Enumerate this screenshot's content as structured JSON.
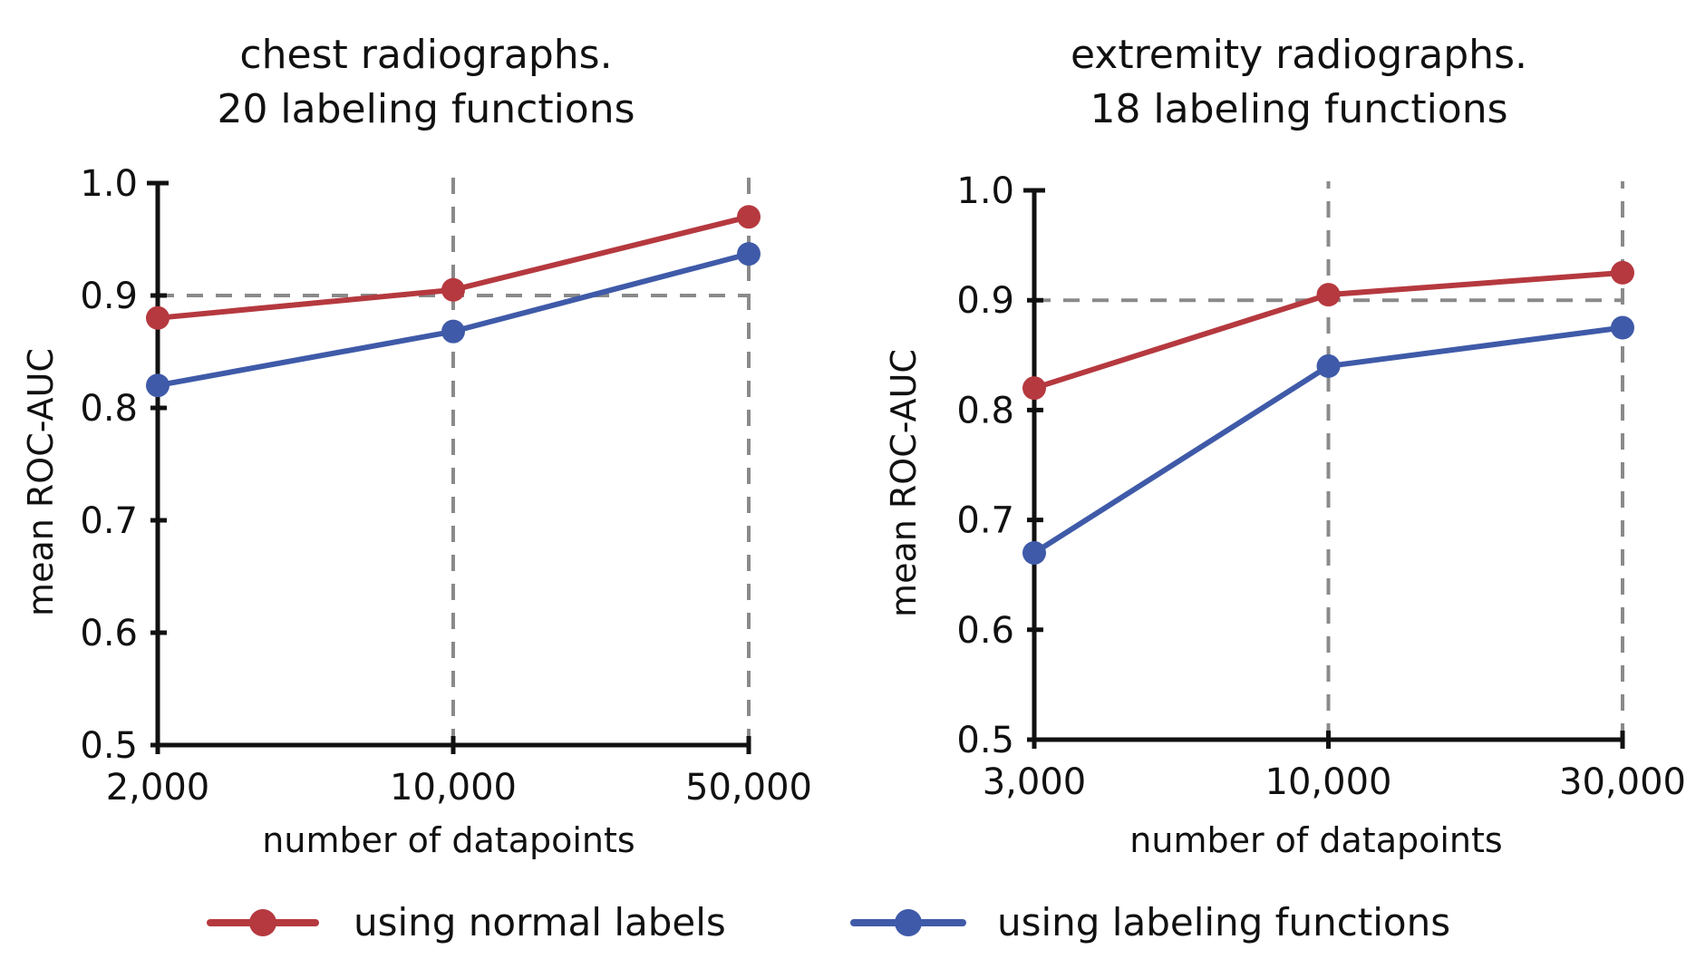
{
  "chart_data": [
    {
      "type": "line",
      "title": "chest radiographs.",
      "subtitle": "20 labeling functions",
      "xlabel": "number of datapoints",
      "ylabel": "mean ROC-AUC",
      "categories": [
        "2,000",
        "10,000",
        "50,000"
      ],
      "yticks": [
        "0.5",
        "0.6",
        "0.7",
        "0.8",
        "0.9",
        "1.0"
      ],
      "ylim": [
        0.5,
        1.0
      ],
      "reference_y": 0.9,
      "series": [
        {
          "name": "using normal labels",
          "color": "#b5393f",
          "values": [
            0.88,
            0.905,
            0.97
          ]
        },
        {
          "name": "using labeling functions",
          "color": "#3f5aa8",
          "values": [
            0.82,
            0.868,
            0.937
          ]
        }
      ]
    },
    {
      "type": "line",
      "title": "extremity radiographs.",
      "subtitle": "18 labeling functions",
      "xlabel": "number of datapoints",
      "ylabel": "mean ROC-AUC",
      "categories": [
        "3,000",
        "10,000",
        "30,000"
      ],
      "yticks": [
        "0.5",
        "0.6",
        "0.7",
        "0.8",
        "0.9",
        "1.0"
      ],
      "ylim": [
        0.5,
        1.0
      ],
      "reference_y": 0.9,
      "series": [
        {
          "name": "using normal labels",
          "color": "#b5393f",
          "values": [
            0.82,
            0.905,
            0.925
          ]
        },
        {
          "name": "using labeling functions",
          "color": "#3f5aa8",
          "values": [
            0.67,
            0.84,
            0.875
          ]
        }
      ]
    }
  ],
  "legend": [
    {
      "label": "using normal labels",
      "color": "#b5393f"
    },
    {
      "label": "using labeling functions",
      "color": "#3f5aa8"
    }
  ]
}
